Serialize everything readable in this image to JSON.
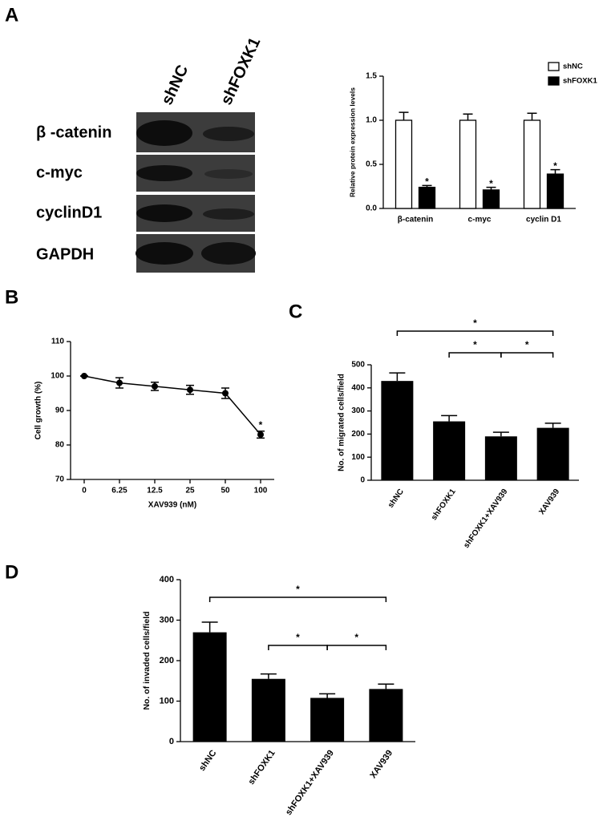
{
  "panel_labels": [
    "A",
    "B",
    "C",
    "D"
  ],
  "blot": {
    "columns": [
      "shNC",
      "shFOXK1"
    ],
    "rows": [
      "β -catenin",
      "c-myc",
      "cyclinD1",
      "GAPDH"
    ]
  },
  "chart_data": [
    {
      "type": "bar",
      "y_label": "Relative protein expression levels",
      "categories": [
        "β-catenin",
        "c-myc",
        "cyclin D1"
      ],
      "series": [
        {
          "name": "shNC",
          "color": "#ffffff",
          "values": [
            1.0,
            1.0,
            1.0
          ],
          "errors": [
            0.09,
            0.07,
            0.08
          ]
        },
        {
          "name": "shFOXK1",
          "color": "#000000",
          "values": [
            0.24,
            0.21,
            0.39
          ],
          "errors": [
            0.02,
            0.03,
            0.05
          ],
          "significance": [
            "*",
            "*",
            "*"
          ]
        }
      ],
      "ylim": [
        0,
        1.5
      ],
      "yticks": [
        {
          "value": 0,
          "label": "0.0"
        },
        0.5,
        {
          "value": 1,
          "label": "1.0"
        },
        1.5
      ],
      "legend": "top-right"
    },
    {
      "type": "line",
      "x_label": "XAV939 (nM)",
      "y_label": "Cell growth  (%)",
      "categories": [
        "0",
        "6.25",
        "12.5",
        "25",
        "50",
        "100"
      ],
      "values": [
        100,
        98,
        97,
        96,
        95,
        83
      ],
      "errors": [
        0,
        1.5,
        1.2,
        1.3,
        1.5,
        1.0
      ],
      "significance": [
        null,
        null,
        null,
        null,
        null,
        "*"
      ],
      "color": "#000000",
      "ylim": [
        70,
        110
      ],
      "yticks": [
        70,
        80,
        90,
        100,
        110
      ]
    },
    {
      "type": "bar",
      "y_label": "No. of migrated cells/field",
      "categories": [
        "shNC",
        "shFOXK1",
        "shFOXK1+XAV939",
        "XAV939"
      ],
      "values": [
        430,
        255,
        190,
        227
      ],
      "errors": [
        35,
        25,
        18,
        20
      ],
      "color": "#000000",
      "comparisons": [
        {
          "between": [
            0,
            3
          ],
          "label": "*"
        },
        {
          "between": [
            1,
            2
          ],
          "label": "*"
        },
        {
          "between": [
            2,
            3
          ],
          "label": "*"
        }
      ],
      "ylim": [
        0,
        500
      ],
      "yticks": [
        0,
        100,
        200,
        300,
        400,
        500
      ]
    },
    {
      "type": "bar",
      "y_label": "No. of invaded cells/field",
      "categories": [
        "shNC",
        "shFOXK1",
        "shFOXK1+XAV939",
        "XAV939"
      ],
      "values": [
        270,
        155,
        108,
        130
      ],
      "errors": [
        25,
        12,
        10,
        12
      ],
      "color": "#000000",
      "comparisons": [
        {
          "between": [
            0,
            3
          ],
          "label": "*"
        },
        {
          "between": [
            1,
            2
          ],
          "label": "*"
        },
        {
          "between": [
            2,
            3
          ],
          "label": "*"
        }
      ],
      "ylim": [
        0,
        400
      ],
      "yticks": [
        0,
        100,
        200,
        300,
        400
      ]
    }
  ]
}
